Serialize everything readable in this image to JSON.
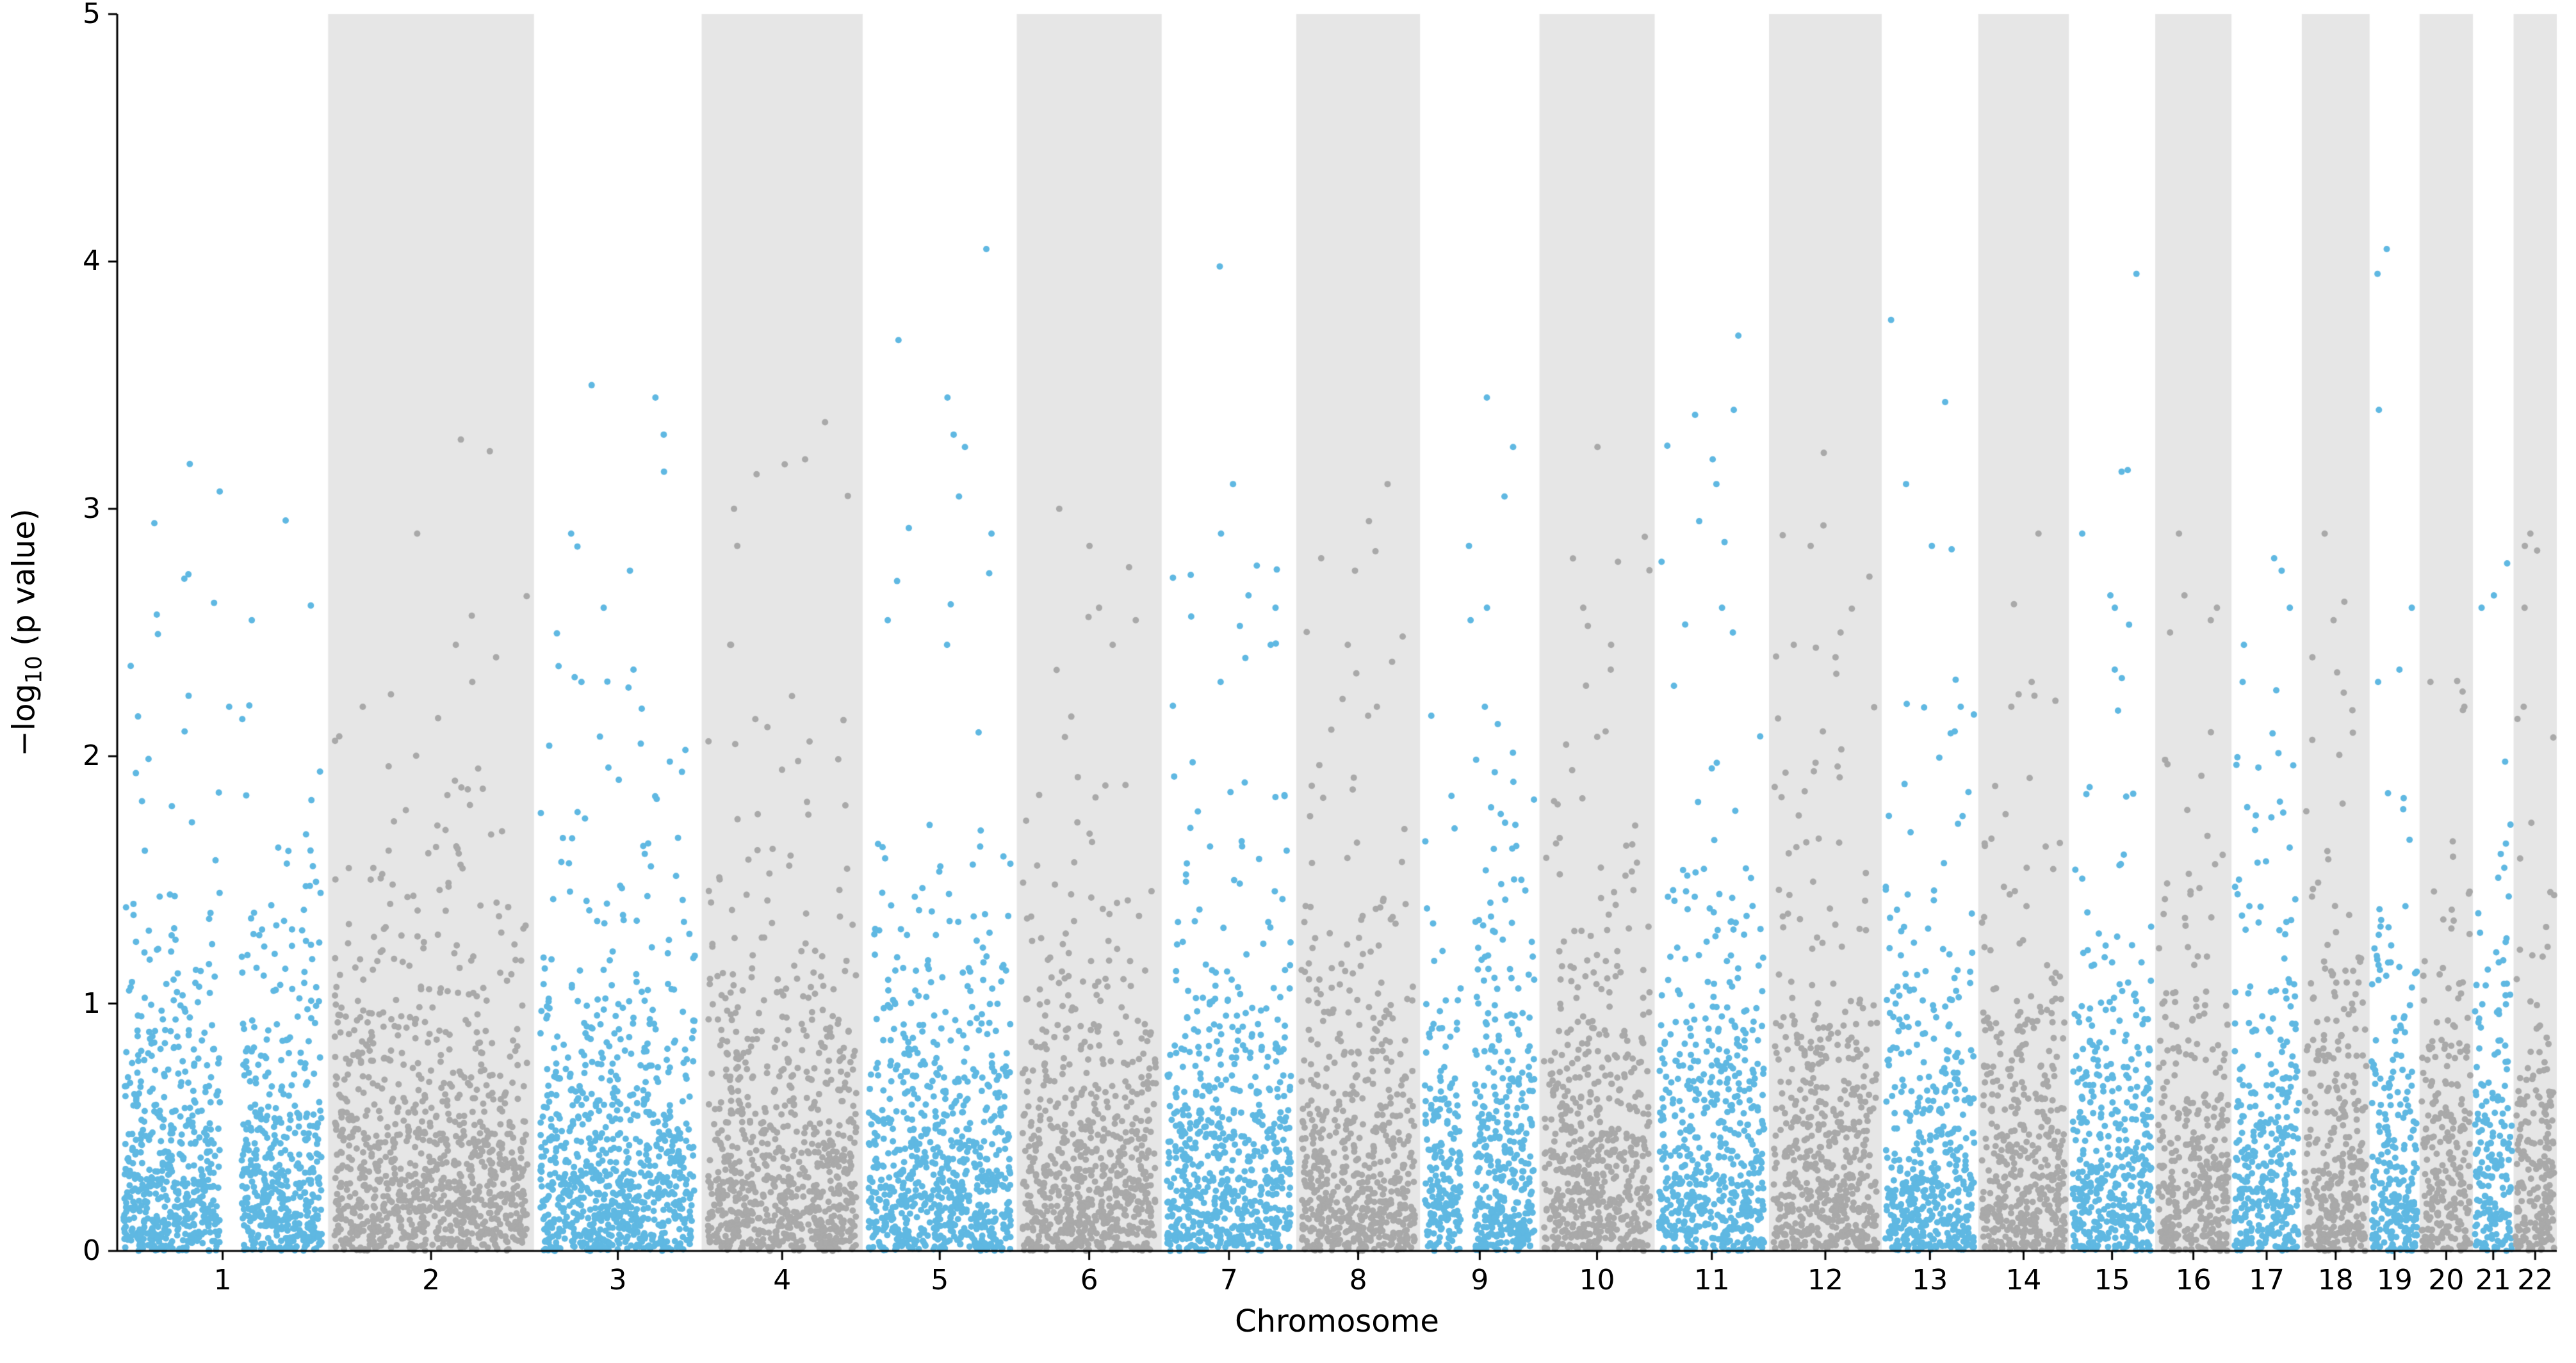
{
  "figure": {
    "xlabel": "Chromosome",
    "ylabel_prefix": "−log",
    "ylabel_sub": "10",
    "ylabel_suffix": " (p value)"
  },
  "chart_data": {
    "type": "scatter",
    "variant": "manhattan",
    "title": "",
    "xlabel": "Chromosome",
    "ylabel": "-log10 (p value)",
    "ylim": [
      0,
      5
    ],
    "yticks": [
      0,
      1,
      2,
      3,
      4,
      5
    ],
    "ytick_labels": [
      "0",
      "1",
      "2",
      "3",
      "4",
      "5"
    ],
    "categories": [
      "1",
      "2",
      "3",
      "4",
      "5",
      "6",
      "7",
      "8",
      "9",
      "10",
      "11",
      "12",
      "13",
      "14",
      "15",
      "16",
      "17",
      "18",
      "19",
      "20",
      "21",
      "22"
    ],
    "chromosome_weights": [
      249,
      243,
      198,
      190,
      182,
      171,
      159,
      146,
      141,
      136,
      135,
      133,
      114,
      107,
      102,
      90,
      83,
      80,
      59,
      63,
      48,
      51
    ],
    "odd_chromosome_color": "#5fb8e2",
    "even_chromosome_color": "#a9a9a9",
    "band_fill_color": "#e6e6e6",
    "background_color": "#ffffff",
    "spine_color": "#000000",
    "grid": false,
    "legend": false,
    "point_radius": 5,
    "total_points": 12000,
    "seed": 7,
    "max_peaks_per_chromosome": [
      [
        3.07,
        2.62,
        2.55,
        2.2,
        2.15,
        2.1
      ],
      [
        3.28,
        2.9,
        2.45,
        2.4,
        2.3,
        2.25,
        2.2
      ],
      [
        3.5,
        3.45,
        3.3,
        3.15,
        2.9,
        2.75,
        2.6,
        2.35,
        2.3
      ],
      [
        3.35,
        3.2,
        3.18,
        3.0,
        2.85,
        2.45,
        2.15
      ],
      [
        4.05,
        3.45,
        3.3,
        3.25,
        3.05,
        2.9,
        2.55,
        2.45
      ],
      [
        3.0,
        2.85,
        2.6,
        2.55,
        2.45
      ],
      [
        3.98,
        3.1,
        2.9,
        2.65,
        2.6,
        2.45,
        2.3
      ],
      [
        3.1,
        2.95,
        2.8,
        2.75,
        2.45,
        2.2
      ],
      [
        3.45,
        3.25,
        3.05,
        2.85,
        2.6,
        2.55,
        2.2
      ],
      [
        3.25,
        2.6,
        2.45,
        2.35,
        2.1
      ],
      [
        3.7,
        3.4,
        3.38,
        3.2,
        3.1,
        2.95,
        2.6,
        2.5
      ],
      [
        2.85,
        2.5,
        2.45,
        2.4,
        2.1
      ],
      [
        3.1,
        2.85,
        2.2,
        2.1
      ],
      [
        2.9,
        2.3,
        2.25,
        2.2
      ],
      [
        3.95,
        3.15,
        2.9,
        2.65,
        2.6,
        2.35
      ],
      [
        2.9,
        2.65,
        2.6,
        2.55,
        2.5
      ],
      [
        2.8,
        2.75,
        2.6,
        2.45,
        2.3
      ],
      [
        2.9,
        2.55,
        2.4
      ],
      [
        4.05,
        3.95,
        3.4,
        2.6,
        2.35,
        2.3
      ],
      [
        2.3,
        2.2
      ],
      [
        2.65,
        2.6
      ],
      [
        2.9,
        2.85,
        2.6,
        2.2
      ]
    ],
    "centromere_gaps": [
      {
        "chromosome": "1",
        "position": 0.54,
        "width": 0.1
      },
      {
        "chromosome": "9",
        "position": 0.4,
        "width": 0.12
      },
      {
        "chromosome": "16",
        "position": 0.35,
        "width": 0.07
      }
    ]
  }
}
